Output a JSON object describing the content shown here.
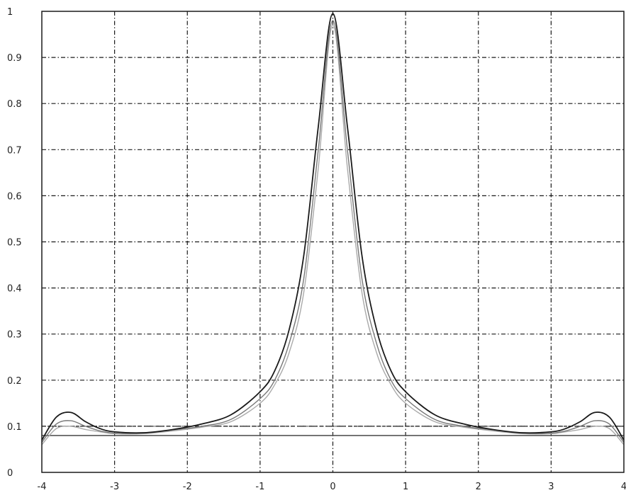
{
  "chart_data": {
    "type": "line",
    "title": "",
    "xlabel": "",
    "ylabel": "",
    "xlim": [
      -4,
      4
    ],
    "ylim": [
      0,
      1
    ],
    "grid": true,
    "x_ticks": [
      "-4",
      "-3",
      "-2",
      "-1",
      "0",
      "1",
      "2",
      "3",
      "4"
    ],
    "y_ticks": [
      "0",
      "0.1",
      "0.2",
      "0.3",
      "0.4",
      "0.5",
      "0.6",
      "0.7",
      "0.8",
      "0.9",
      "1"
    ],
    "reference_lines": [
      {
        "y": 0.08
      },
      {
        "y": 0.1
      }
    ],
    "series": [
      {
        "line_color": "#1a1a1a",
        "x": [
          -4,
          -3.8,
          -3.6,
          -3.4,
          -3.2,
          -3,
          -2.6,
          -2.2,
          -1.8,
          -1.4,
          -1,
          -0.8,
          -0.6,
          -0.4,
          -0.2,
          0,
          0.2,
          0.4,
          0.6,
          0.8,
          1,
          1.4,
          1.8,
          2.2,
          2.6,
          3,
          3.2,
          3.4,
          3.6,
          3.8,
          4
        ],
        "values": [
          0.07,
          0.12,
          0.13,
          0.11,
          0.095,
          0.088,
          0.086,
          0.093,
          0.105,
          0.125,
          0.175,
          0.22,
          0.31,
          0.47,
          0.75,
          0.995,
          0.75,
          0.47,
          0.31,
          0.22,
          0.175,
          0.125,
          0.105,
          0.093,
          0.086,
          0.088,
          0.095,
          0.11,
          0.13,
          0.12,
          0.07
        ]
      },
      {
        "line_color": "#777777",
        "x": [
          -4,
          -3.8,
          -3.6,
          -3.4,
          -3.2,
          -3,
          -2.6,
          -2.2,
          -1.8,
          -1.4,
          -1,
          -0.8,
          -0.6,
          -0.4,
          -0.2,
          0,
          0.2,
          0.4,
          0.6,
          0.8,
          1,
          1.4,
          1.8,
          2.2,
          2.6,
          3,
          3.2,
          3.4,
          3.6,
          3.8,
          4
        ],
        "values": [
          0.065,
          0.105,
          0.112,
          0.1,
          0.09,
          0.085,
          0.085,
          0.092,
          0.1,
          0.115,
          0.16,
          0.2,
          0.28,
          0.42,
          0.7,
          0.98,
          0.7,
          0.42,
          0.28,
          0.2,
          0.16,
          0.115,
          0.1,
          0.092,
          0.085,
          0.085,
          0.09,
          0.1,
          0.112,
          0.105,
          0.065
        ]
      },
      {
        "line_color": "#aaaaaa",
        "x": [
          -4,
          -3.8,
          -3.6,
          -3.4,
          -3.2,
          -3,
          -2.6,
          -2.2,
          -1.8,
          -1.4,
          -1,
          -0.8,
          -0.6,
          -0.4,
          -0.2,
          0,
          0.2,
          0.4,
          0.6,
          0.8,
          1,
          1.4,
          1.8,
          2.2,
          2.6,
          3,
          3.2,
          3.4,
          3.6,
          3.8,
          4
        ],
        "values": [
          0.06,
          0.095,
          0.1,
          0.093,
          0.088,
          0.084,
          0.084,
          0.09,
          0.098,
          0.11,
          0.15,
          0.19,
          0.26,
          0.39,
          0.66,
          0.97,
          0.66,
          0.39,
          0.26,
          0.19,
          0.15,
          0.11,
          0.098,
          0.09,
          0.084,
          0.084,
          0.088,
          0.093,
          0.1,
          0.095,
          0.06
        ]
      }
    ],
    "colors": {
      "grid": "#1a1a1a",
      "axis": "#1a1a1a",
      "reference_solid": "#555555",
      "reference_dashed": "#222222"
    }
  }
}
